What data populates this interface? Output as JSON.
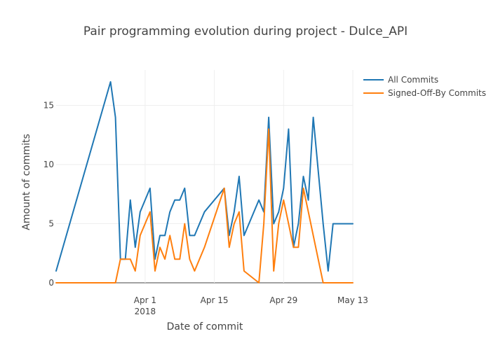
{
  "chart_data": {
    "type": "line",
    "title": "Pair programming evolution during project - Dulce_API",
    "xlabel": "Date of commit",
    "ylabel": "Amount of commits",
    "x_ticks": [
      {
        "date": "2018-04-01",
        "label": "Apr 1",
        "sublabel": "2018"
      },
      {
        "date": "2018-04-15",
        "label": "Apr 15",
        "sublabel": ""
      },
      {
        "date": "2018-04-29",
        "label": "Apr 29",
        "sublabel": ""
      },
      {
        "date": "2018-05-13",
        "label": "May 13",
        "sublabel": ""
      }
    ],
    "xlim": [
      "2018-03-14",
      "2018-05-13"
    ],
    "ylim": [
      0,
      18
    ],
    "y_ticks": [
      0,
      5,
      10,
      15
    ],
    "grid": true,
    "legend": "top-right",
    "x": [
      "2018-03-14",
      "2018-03-25",
      "2018-03-26",
      "2018-03-27",
      "2018-03-28",
      "2018-03-29",
      "2018-03-30",
      "2018-03-31",
      "2018-04-02",
      "2018-04-03",
      "2018-04-04",
      "2018-04-05",
      "2018-04-06",
      "2018-04-07",
      "2018-04-08",
      "2018-04-09",
      "2018-04-10",
      "2018-04-11",
      "2018-04-12",
      "2018-04-13",
      "2018-04-17",
      "2018-04-18",
      "2018-04-19",
      "2018-04-20",
      "2018-04-21",
      "2018-04-24",
      "2018-04-25",
      "2018-04-26",
      "2018-04-27",
      "2018-04-28",
      "2018-04-29",
      "2018-04-30",
      "2018-05-01",
      "2018-05-02",
      "2018-05-03",
      "2018-05-04",
      "2018-05-05",
      "2018-05-07",
      "2018-05-08",
      "2018-05-09",
      "2018-05-10",
      "2018-05-11",
      "2018-05-12",
      "2018-05-13"
    ],
    "series": [
      {
        "name": "All Commits",
        "color": "#1f77b4",
        "values": [
          1,
          17,
          14,
          2,
          2,
          7,
          3,
          6,
          8,
          2,
          4,
          4,
          6,
          7,
          7,
          8,
          4,
          4,
          5,
          6,
          8,
          4,
          6,
          9,
          4,
          7,
          6,
          14,
          5,
          6,
          8,
          13,
          3,
          5,
          9,
          7,
          14,
          5,
          1,
          5,
          5,
          5,
          5,
          5
        ]
      },
      {
        "name": "Signed-Off-By Commits",
        "color": "#ff7f0e",
        "values": [
          0,
          0,
          0,
          2,
          2,
          2,
          1,
          4,
          6,
          1,
          3,
          2,
          4,
          2,
          2,
          5,
          2,
          1,
          2,
          3,
          8,
          3,
          5,
          6,
          1,
          0,
          5,
          13,
          1,
          5,
          7,
          5,
          3,
          3,
          8,
          6,
          4,
          0,
          0,
          0,
          0,
          0,
          0,
          0
        ]
      }
    ]
  }
}
